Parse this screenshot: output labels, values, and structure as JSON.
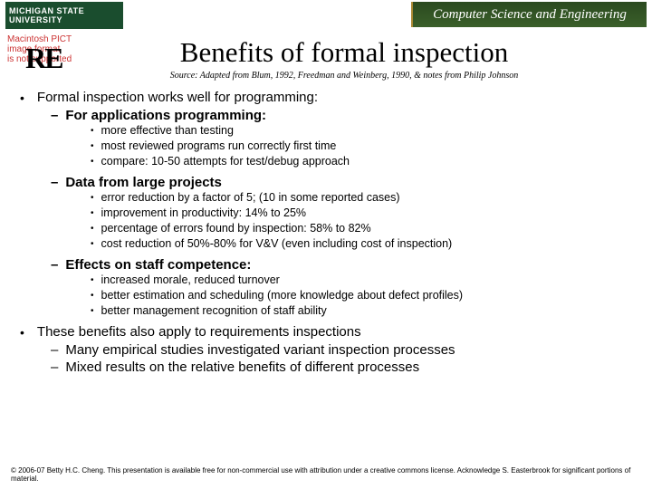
{
  "header": {
    "msu": "MICHIGAN STATE UNIVERSITY",
    "cse": "Computer Science and Engineering"
  },
  "pict": {
    "l1": "Macintosh PICT",
    "l2": "image format",
    "l3": "is not supported"
  },
  "re": "RE",
  "title": "Benefits of formal inspection",
  "source": "Source: Adapted from Blum, 1992, Freedman and Weinberg, 1990, & notes from Philip Johnson",
  "p1": "Formal inspection works well for programming:",
  "p1a": "For applications programming:",
  "p1a1": "more effective than testing",
  "p1a2": "most reviewed programs run correctly first time",
  "p1a3": "compare: 10-50 attempts for test/debug approach",
  "p1b": "Data from large projects",
  "p1b1": "error reduction by a factor of 5; (10 in some reported cases)",
  "p1b2": "improvement in productivity: 14% to 25%",
  "p1b3": "percentage of errors found by inspection: 58% to 82%",
  "p1b4": "cost reduction of 50%-80% for V&V (even including cost of inspection)",
  "p1c": "Effects on staff competence:",
  "p1c1": "increased morale, reduced turnover",
  "p1c2": "better estimation and scheduling (more knowledge about defect profiles)",
  "p1c3": "better management recognition of staff ability",
  "p2": "These benefits also apply to requirements inspections",
  "p2a": "Many empirical studies investigated variant inspection processes",
  "p2b": "Mixed results on the relative benefits of different processes",
  "footer": "© 2006-07 Betty H.C. Cheng. This presentation is available free for non-commercial use with attribution under a creative commons license. Acknowledge S. Easterbrook for significant portions of material."
}
